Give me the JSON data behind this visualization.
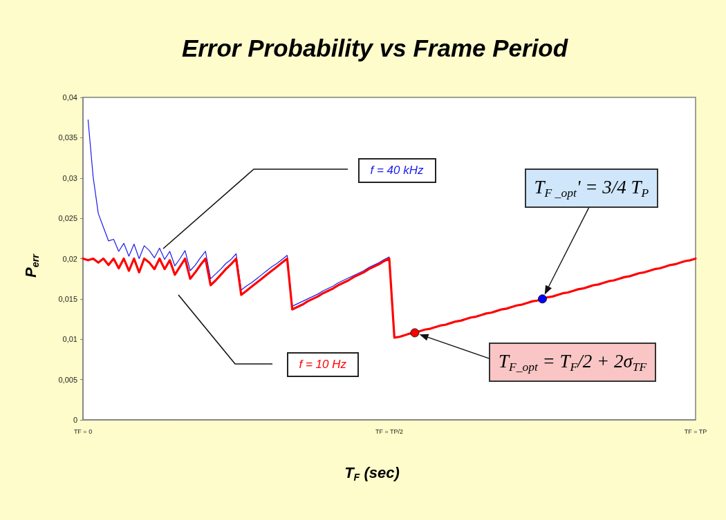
{
  "chart_data": {
    "type": "line",
    "title": "Error Probability vs Frame Period",
    "xlabel": "T$_{F}$ (sec)",
    "ylabel": "P$_{err}$",
    "categories": [
      "TF = 0",
      null,
      null,
      null,
      null,
      null,
      null,
      null,
      null,
      null,
      null,
      null,
      null,
      null,
      null,
      null,
      null,
      null,
      null,
      null,
      null,
      null,
      null,
      null,
      null,
      null,
      null,
      null,
      null,
      null,
      null,
      null,
      null,
      null,
      null,
      null,
      null,
      null,
      null,
      null,
      null,
      null,
      null,
      null,
      null,
      null,
      null,
      null,
      null,
      null,
      null,
      null,
      null,
      null,
      null,
      null,
      null,
      null,
      null,
      null,
      "TF = TP/2",
      null,
      null,
      null,
      null,
      null,
      null,
      null,
      null,
      null,
      null,
      null,
      null,
      null,
      null,
      null,
      null,
      null,
      null,
      null,
      null,
      null,
      null,
      null,
      null,
      null,
      null,
      null,
      null,
      null,
      null,
      null,
      null,
      null,
      null,
      null,
      null,
      null,
      null,
      null,
      null,
      null,
      null,
      null,
      null,
      null,
      null,
      null,
      null,
      null,
      null,
      null,
      null,
      null,
      null,
      null,
      null,
      null,
      null,
      null,
      "TF = TP"
    ],
    "ylim": [
      0,
      0.04
    ],
    "yticks": [
      0,
      {
        "value": 0.005,
        "label": "0,005"
      },
      {
        "value": 0.01,
        "label": "0,01"
      },
      {
        "value": 0.015,
        "label": "0,015"
      },
      {
        "value": 0.02,
        "label": "0,02"
      },
      {
        "value": 0.025,
        "label": "0,025"
      },
      {
        "value": 0.03,
        "label": "0,03"
      },
      {
        "value": 0.035,
        "label": "0,035"
      },
      {
        "value": 0.04,
        "label": "0,04"
      }
    ],
    "grid": false,
    "legend": false,
    "marker": "none",
    "line_style": "solid",
    "series": [
      {
        "name": "f = 40 kHz",
        "color": "#1a1aee",
        "values": [
          null,
          0.0372,
          0.0301,
          0.0256,
          0.0239,
          0.0222,
          0.0224,
          0.0209,
          0.0219,
          0.0203,
          0.0218,
          0.02,
          0.0216,
          0.021,
          0.0201,
          0.0213,
          0.0199,
          0.0209,
          0.0191,
          0.02,
          0.021,
          0.0185,
          0.0192,
          0.0201,
          0.0209,
          0.0175,
          0.0181,
          0.0187,
          0.0194,
          0.0199,
          0.0206,
          0.0161,
          0.0166,
          0.017,
          0.0175,
          0.018,
          0.0185,
          0.019,
          0.0194,
          0.0199,
          0.0204,
          0.0141,
          0.0144,
          0.0147,
          0.015,
          0.0153,
          0.0156,
          0.016,
          0.0163,
          0.0166,
          0.017,
          0.0173,
          0.0176,
          0.0179,
          0.0182,
          0.0185,
          0.0189,
          0.0192,
          0.0195,
          0.0199,
          0.0202,
          null,
          null,
          null,
          null,
          null,
          null,
          null,
          null,
          null,
          null,
          null,
          null,
          null,
          null,
          null,
          null,
          null,
          null,
          null,
          null,
          null,
          null,
          null,
          null,
          null,
          null,
          null,
          null,
          null,
          null,
          null,
          null,
          null,
          null,
          null,
          null,
          null,
          null,
          null,
          null,
          null,
          null,
          null,
          null,
          null,
          null,
          null,
          null,
          null,
          null,
          null,
          null,
          null,
          null,
          null,
          null,
          null,
          null,
          null,
          null
        ]
      },
      {
        "name": "f = 10 Hz",
        "color": "#ff0000",
        "values": [
          0.02,
          0.0198,
          0.02,
          0.0195,
          0.02,
          0.0192,
          0.02,
          0.0188,
          0.02,
          0.0185,
          0.02,
          0.0183,
          0.02,
          0.0195,
          0.0187,
          0.02,
          0.0187,
          0.0198,
          0.018,
          0.019,
          0.02,
          0.0175,
          0.0183,
          0.0192,
          0.02,
          0.0167,
          0.0173,
          0.018,
          0.0187,
          0.0193,
          0.02,
          0.0155,
          0.016,
          0.0165,
          0.017,
          0.0175,
          0.018,
          0.0185,
          0.019,
          0.0195,
          0.02,
          0.0137,
          0.014,
          0.0143,
          0.0147,
          0.015,
          0.0153,
          0.0157,
          0.016,
          0.0163,
          0.0167,
          0.017,
          0.0173,
          0.0177,
          0.018,
          0.0183,
          0.0187,
          0.019,
          0.0193,
          0.0197,
          0.02,
          0.0102,
          0.0103,
          0.0105,
          0.0107,
          0.0108,
          0.011,
          0.0112,
          0.0113,
          0.0115,
          0.0117,
          0.0118,
          0.012,
          0.0122,
          0.0123,
          0.0125,
          0.0127,
          0.0128,
          0.013,
          0.0132,
          0.0133,
          0.0135,
          0.0137,
          0.0138,
          0.014,
          0.0142,
          0.0143,
          0.0145,
          0.0147,
          0.0148,
          0.015,
          0.0152,
          0.0153,
          0.0155,
          0.0157,
          0.0158,
          0.016,
          0.0162,
          0.0163,
          0.0165,
          0.0167,
          0.0168,
          0.017,
          0.0172,
          0.0173,
          0.0175,
          0.0177,
          0.0178,
          0.018,
          0.0182,
          0.0183,
          0.0185,
          0.0187,
          0.0188,
          0.019,
          0.0192,
          0.0193,
          0.0195,
          0.0197,
          0.0198,
          0.02
        ]
      },
      {
        "type": "scatter",
        "marker": "circle",
        "color": "#0000ff",
        "values": [
          null,
          null,
          null,
          null,
          null,
          null,
          null,
          null,
          null,
          null,
          null,
          null,
          null,
          null,
          null,
          null,
          null,
          null,
          null,
          null,
          null,
          null,
          null,
          null,
          null,
          null,
          null,
          null,
          null,
          null,
          null,
          null,
          null,
          null,
          null,
          null,
          null,
          null,
          null,
          null,
          null,
          null,
          null,
          null,
          null,
          null,
          null,
          null,
          null,
          null,
          null,
          null,
          null,
          null,
          null,
          null,
          null,
          null,
          null,
          null,
          null,
          null,
          null,
          null,
          null,
          null,
          null,
          null,
          null,
          null,
          null,
          null,
          null,
          null,
          null,
          null,
          null,
          null,
          null,
          null,
          null,
          null,
          null,
          null,
          null,
          null,
          null,
          null,
          null,
          null,
          0.015,
          null,
          null,
          null,
          null,
          null,
          null,
          null,
          null,
          null,
          null,
          null,
          null,
          null,
          null,
          null,
          null,
          null,
          null,
          null,
          null,
          null,
          null,
          null,
          null,
          null,
          null,
          null,
          null,
          null,
          null
        ]
      },
      {
        "type": "scatter",
        "marker": "circle",
        "color": "#ff0000",
        "values": [
          null,
          null,
          null,
          null,
          null,
          null,
          null,
          null,
          null,
          null,
          null,
          null,
          null,
          null,
          null,
          null,
          null,
          null,
          null,
          null,
          null,
          null,
          null,
          null,
          null,
          null,
          null,
          null,
          null,
          null,
          null,
          null,
          null,
          null,
          null,
          null,
          null,
          null,
          null,
          null,
          null,
          null,
          null,
          null,
          null,
          null,
          null,
          null,
          null,
          null,
          null,
          null,
          null,
          null,
          null,
          null,
          null,
          null,
          null,
          null,
          null,
          null,
          null,
          null,
          null,
          0.0108,
          null,
          null,
          null,
          null,
          null,
          null,
          null,
          null,
          null,
          null,
          null,
          null,
          null,
          null,
          null,
          null,
          null,
          null,
          null,
          null,
          null,
          null,
          null,
          null,
          null,
          null,
          null,
          null,
          null,
          null,
          null,
          null,
          null,
          null,
          null,
          null,
          null,
          null,
          null,
          null,
          null,
          null,
          null,
          null,
          null,
          null,
          null,
          null,
          null,
          null,
          null,
          null,
          null,
          null,
          null
        ]
      }
    ],
    "annotations": [
      "T$_{F _opt}$' = 3/4 T$_{P}$",
      "T$_{F_opt}$ = T$_{F}$/2 + 2σ$_{TF}$"
    ]
  }
}
